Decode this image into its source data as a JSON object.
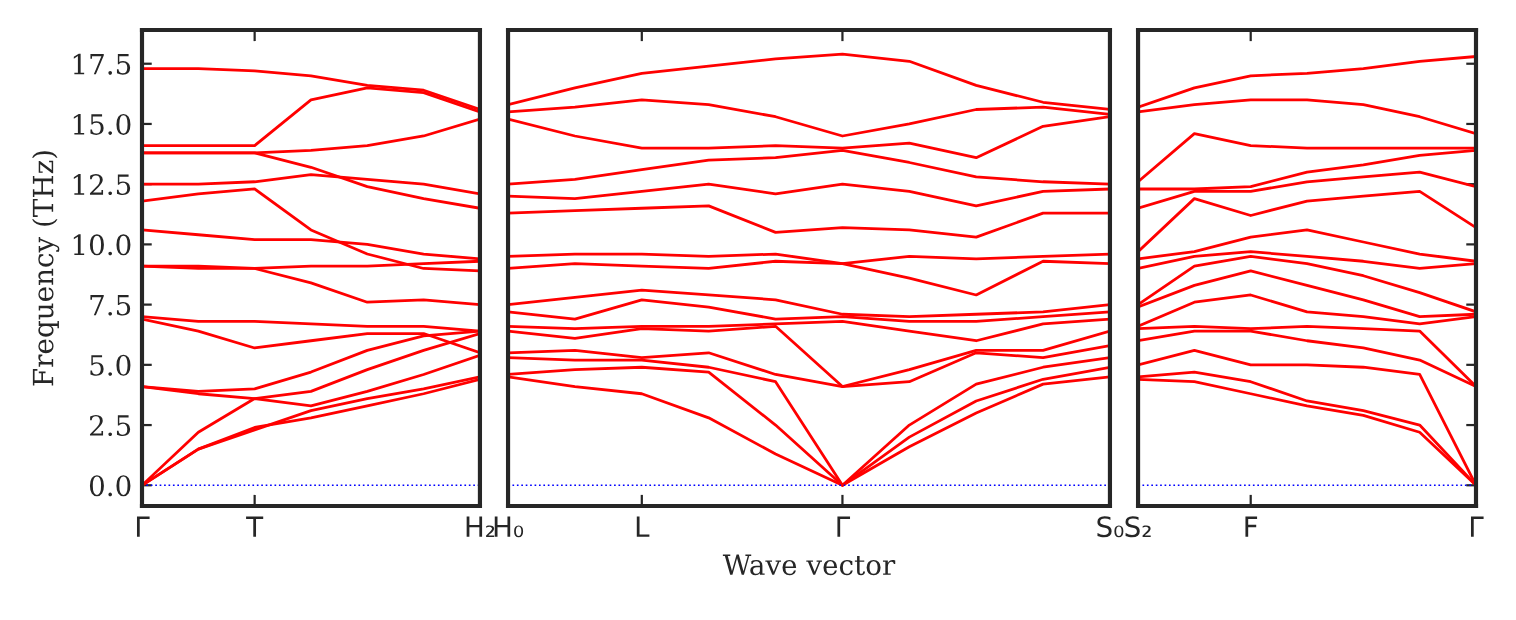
{
  "chart_data": [
    {
      "type": "line",
      "ylabel": "Frequency (THz)",
      "categories": [
        "Γ",
        null,
        "T",
        null,
        null,
        null,
        "H₂"
      ],
      "ylim": [
        -0.86,
        18.9
      ],
      "yticks": [
        {
          "value": 0,
          "label": "0.0"
        },
        {
          "value": 2.5,
          "label": "2.5"
        },
        {
          "value": 5,
          "label": "5.0"
        },
        {
          "value": 7.5,
          "label": "7.5"
        },
        {
          "value": 10,
          "label": "10.0"
        },
        {
          "value": 12.5,
          "label": "12.5"
        },
        {
          "value": 15,
          "label": "15.0"
        },
        {
          "value": 17.5,
          "label": "17.5"
        }
      ],
      "line_style": "solid",
      "ref_lines": [
        {
          "axis": "y",
          "value": 0,
          "color": "#0000ff",
          "line_style": "dotted"
        }
      ],
      "series": [
        {
          "color": "#ff0000",
          "values": [
            0,
            1.5,
            2.4,
            2.8,
            3.3,
            3.8,
            4.4
          ]
        },
        {
          "color": "#ff0000",
          "values": [
            0,
            1.5,
            2.3,
            3.1,
            3.6,
            4.0,
            4.5
          ]
        },
        {
          "color": "#ff0000",
          "values": [
            0,
            2.2,
            3.6,
            3.3,
            3.9,
            4.6,
            5.4
          ]
        },
        {
          "color": "#ff0000",
          "values": [
            4.1,
            3.8,
            3.6,
            3.9,
            4.8,
            5.6,
            6.3
          ]
        },
        {
          "color": "#ff0000",
          "values": [
            4.1,
            3.9,
            4.0,
            4.7,
            5.6,
            6.2,
            6.4
          ]
        },
        {
          "color": "#ff0000",
          "values": [
            6.9,
            6.4,
            5.7,
            6.0,
            6.3,
            6.3,
            5.5
          ]
        },
        {
          "color": "#ff0000",
          "values": [
            7.0,
            6.8,
            6.8,
            6.7,
            6.6,
            6.6,
            6.4
          ]
        },
        {
          "color": "#ff0000",
          "values": [
            9.1,
            9.0,
            9.0,
            8.4,
            7.6,
            7.7,
            7.5
          ]
        },
        {
          "color": "#ff0000",
          "values": [
            9.1,
            9.1,
            9.0,
            9.1,
            9.1,
            9.2,
            9.3
          ]
        },
        {
          "color": "#ff0000",
          "values": [
            10.6,
            10.4,
            10.2,
            10.2,
            10.0,
            9.6,
            9.4
          ]
        },
        {
          "color": "#ff0000",
          "values": [
            11.8,
            12.1,
            12.3,
            10.6,
            9.6,
            9.0,
            8.9
          ]
        },
        {
          "color": "#ff0000",
          "values": [
            12.5,
            12.5,
            12.6,
            12.9,
            12.7,
            12.5,
            12.1
          ]
        },
        {
          "color": "#ff0000",
          "values": [
            13.8,
            13.8,
            13.8,
            13.2,
            12.4,
            11.9,
            11.5
          ]
        },
        {
          "color": "#ff0000",
          "values": [
            13.8,
            13.8,
            13.8,
            13.9,
            14.1,
            14.5,
            15.2
          ]
        },
        {
          "color": "#ff0000",
          "values": [
            14.1,
            14.1,
            14.1,
            16.0,
            16.5,
            16.3,
            15.5
          ]
        },
        {
          "color": "#ff0000",
          "values": [
            17.3,
            17.3,
            17.2,
            17.0,
            16.6,
            16.4,
            15.6
          ]
        }
      ]
    },
    {
      "type": "line",
      "xlabel": "Wave vector",
      "categories": [
        "H₀",
        null,
        "L",
        null,
        null,
        "Γ",
        null,
        null,
        null,
        "S₀"
      ],
      "ylim": [
        -0.86,
        18.9
      ],
      "tick_labels": "x",
      "line_style": "solid",
      "ref_lines": [
        {
          "axis": "y",
          "value": 0,
          "color": "#0000ff",
          "line_style": "dotted"
        }
      ],
      "series": [
        {
          "color": "#ff0000",
          "values": [
            4.5,
            4.1,
            3.8,
            2.8,
            1.3,
            0,
            1.6,
            3.0,
            4.2,
            4.5
          ]
        },
        {
          "color": "#ff0000",
          "values": [
            4.6,
            4.8,
            4.9,
            4.7,
            2.5,
            0,
            2.0,
            3.5,
            4.4,
            4.9
          ]
        },
        {
          "color": "#ff0000",
          "values": [
            5.3,
            5.2,
            5.2,
            4.9,
            4.3,
            0,
            2.5,
            4.2,
            4.9,
            5.3
          ]
        },
        {
          "color": "#ff0000",
          "values": [
            5.5,
            5.6,
            5.3,
            5.5,
            4.6,
            4.1,
            4.3,
            5.5,
            5.3,
            5.8
          ]
        },
        {
          "color": "#ff0000",
          "values": [
            6.4,
            6.1,
            6.5,
            6.4,
            6.6,
            4.1,
            4.8,
            5.6,
            5.6,
            6.4
          ]
        },
        {
          "color": "#ff0000",
          "values": [
            6.6,
            6.5,
            6.6,
            6.6,
            6.7,
            6.8,
            6.4,
            6.0,
            6.7,
            6.9
          ]
        },
        {
          "color": "#ff0000",
          "values": [
            7.2,
            6.9,
            7.7,
            7.4,
            6.9,
            7.0,
            6.8,
            6.8,
            7.0,
            7.2
          ]
        },
        {
          "color": "#ff0000",
          "values": [
            7.5,
            7.8,
            8.1,
            7.9,
            7.7,
            7.1,
            7.0,
            7.1,
            7.2,
            7.5
          ]
        },
        {
          "color": "#ff0000",
          "values": [
            9.0,
            9.2,
            9.1,
            9.0,
            9.3,
            9.2,
            8.6,
            7.9,
            9.3,
            9.2
          ]
        },
        {
          "color": "#ff0000",
          "values": [
            9.5,
            9.6,
            9.6,
            9.5,
            9.6,
            9.2,
            9.5,
            9.4,
            9.5,
            9.6
          ]
        },
        {
          "color": "#ff0000",
          "values": [
            11.3,
            11.4,
            11.5,
            11.6,
            10.5,
            10.7,
            10.6,
            10.3,
            11.3,
            11.3
          ]
        },
        {
          "color": "#ff0000",
          "values": [
            12.0,
            11.9,
            12.2,
            12.5,
            12.1,
            12.5,
            12.2,
            11.6,
            12.2,
            12.3
          ]
        },
        {
          "color": "#ff0000",
          "values": [
            12.5,
            12.7,
            13.1,
            13.5,
            13.6,
            13.9,
            13.4,
            12.8,
            12.6,
            12.5
          ]
        },
        {
          "color": "#ff0000",
          "values": [
            15.2,
            14.5,
            14.0,
            14.0,
            14.1,
            14.0,
            14.2,
            13.6,
            14.9,
            15.3
          ]
        },
        {
          "color": "#ff0000",
          "values": [
            15.5,
            15.7,
            16.0,
            15.8,
            15.3,
            14.5,
            15.0,
            15.6,
            15.7,
            15.4
          ]
        },
        {
          "color": "#ff0000",
          "values": [
            15.8,
            16.5,
            17.1,
            17.4,
            17.7,
            17.9,
            17.6,
            16.6,
            15.9,
            15.6
          ]
        }
      ]
    },
    {
      "type": "line",
      "categories": [
        "S₂",
        null,
        "F",
        null,
        null,
        null,
        "Γ"
      ],
      "ylim": [
        -0.86,
        18.9
      ],
      "tick_labels": "x",
      "line_style": "solid",
      "ref_lines": [
        {
          "axis": "y",
          "value": 0,
          "color": "#0000ff",
          "line_style": "dotted"
        }
      ],
      "series": [
        {
          "color": "#ff0000",
          "values": [
            4.4,
            4.3,
            3.8,
            3.3,
            2.9,
            2.2,
            0
          ]
        },
        {
          "color": "#ff0000",
          "values": [
            4.5,
            4.7,
            4.3,
            3.5,
            3.1,
            2.5,
            0
          ]
        },
        {
          "color": "#ff0000",
          "values": [
            5.0,
            5.6,
            5.0,
            5.0,
            4.9,
            4.6,
            0
          ]
        },
        {
          "color": "#ff0000",
          "values": [
            6.0,
            6.4,
            6.4,
            6.0,
            5.7,
            5.2,
            4.1
          ]
        },
        {
          "color": "#ff0000",
          "values": [
            6.5,
            6.6,
            6.5,
            6.6,
            6.5,
            6.4,
            4.1
          ]
        },
        {
          "color": "#ff0000",
          "values": [
            6.6,
            7.6,
            7.9,
            7.2,
            7.0,
            6.7,
            7.0
          ]
        },
        {
          "color": "#ff0000",
          "values": [
            7.4,
            8.3,
            8.9,
            8.3,
            7.7,
            7.0,
            7.1
          ]
        },
        {
          "color": "#ff0000",
          "values": [
            7.5,
            9.1,
            9.5,
            9.2,
            8.7,
            8.0,
            7.2
          ]
        },
        {
          "color": "#ff0000",
          "values": [
            9.0,
            9.5,
            9.7,
            9.5,
            9.3,
            9.0,
            9.2
          ]
        },
        {
          "color": "#ff0000",
          "values": [
            9.4,
            9.7,
            10.3,
            10.6,
            10.1,
            9.6,
            9.3
          ]
        },
        {
          "color": "#ff0000",
          "values": [
            9.7,
            11.9,
            11.2,
            11.8,
            12.0,
            12.2,
            10.7
          ]
        },
        {
          "color": "#ff0000",
          "values": [
            11.5,
            12.2,
            12.2,
            12.6,
            12.8,
            13.0,
            12.4
          ]
        },
        {
          "color": "#ff0000",
          "values": [
            12.3,
            12.3,
            12.4,
            13.0,
            13.3,
            13.7,
            13.9
          ]
        },
        {
          "color": "#ff0000",
          "values": [
            12.6,
            14.6,
            14.1,
            14.0,
            14.0,
            14.0,
            14.0
          ]
        },
        {
          "color": "#ff0000",
          "values": [
            15.5,
            15.8,
            16.0,
            16.0,
            15.8,
            15.3,
            14.6
          ]
        },
        {
          "color": "#ff0000",
          "values": [
            15.7,
            16.5,
            17.0,
            17.1,
            17.3,
            17.6,
            17.8
          ]
        }
      ]
    }
  ]
}
